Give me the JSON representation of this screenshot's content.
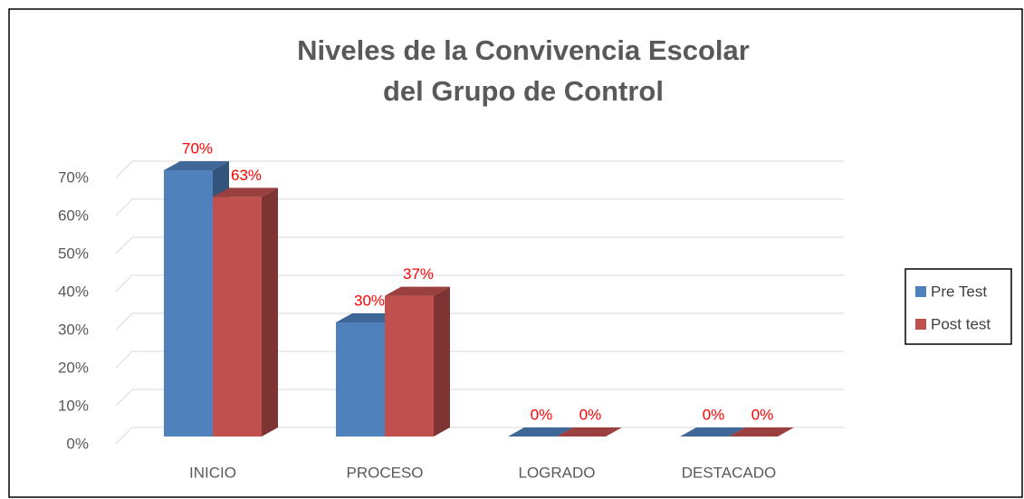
{
  "chart_data": {
    "type": "bar3d",
    "title": [
      "Niveles de la Convivencia Escolar",
      "del Grupo de Control"
    ],
    "categories": [
      "INICIO",
      "PROCESO",
      "LOGRADO",
      "DESTACADO"
    ],
    "series": [
      {
        "name": "Pre Test",
        "color": "#4f81bd",
        "values": [
          70,
          30,
          0,
          0
        ],
        "value_labels": [
          "70%",
          "30%",
          "0%",
          "0%"
        ]
      },
      {
        "name": "Post test",
        "color": "#c0504d",
        "values": [
          63,
          37,
          0,
          0
        ],
        "value_labels": [
          "63%",
          "37%",
          "0%",
          "0%"
        ]
      }
    ],
    "ylim": [
      0,
      70
    ],
    "yticks": [
      {
        "value": 0,
        "label": "0%"
      },
      {
        "value": 10,
        "label": "10%"
      },
      {
        "value": 20,
        "label": "20%"
      },
      {
        "value": 30,
        "label": "30%"
      },
      {
        "value": 40,
        "label": "40%"
      },
      {
        "value": 50,
        "label": "50%"
      },
      {
        "value": 60,
        "label": "60%"
      },
      {
        "value": 70,
        "label": "70%"
      }
    ],
    "grid": true,
    "legend": "right"
  }
}
